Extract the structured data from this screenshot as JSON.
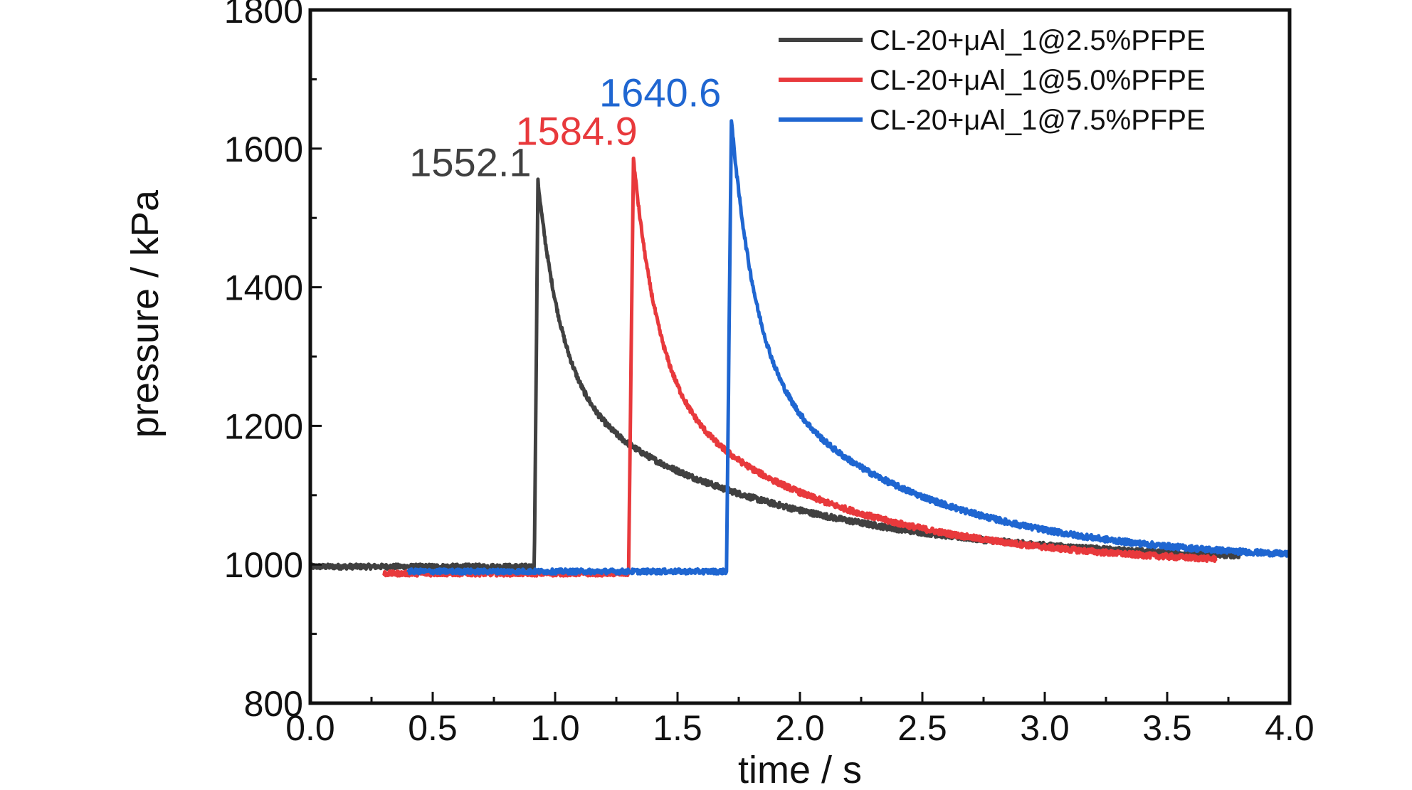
{
  "chart_data": {
    "type": "line",
    "title": "",
    "xlabel": "time / s",
    "ylabel": "pressure / kPa",
    "xlim": [
      0.0,
      4.0
    ],
    "ylim": [
      800,
      1800
    ],
    "xticks": [
      0.0,
      0.5,
      1.0,
      1.5,
      2.0,
      2.5,
      3.0,
      3.5,
      4.0
    ],
    "xtick_labels": [
      "0.0",
      "0.5",
      "1.0",
      "1.5",
      "2.0",
      "2.5",
      "3.0",
      "3.5",
      "4.0"
    ],
    "yticks": [
      800,
      1000,
      1200,
      1400,
      1600,
      1800
    ],
    "ytick_labels": [
      "800",
      "1000",
      "1200",
      "1400",
      "1600",
      "1800"
    ],
    "grid": false,
    "legend_position": "top-right",
    "series": [
      {
        "name": "CL-20+μAl_1@2.5%PFPE",
        "color": "#404040",
        "start": 0.0,
        "end": 3.8,
        "baseline": 997,
        "onset": 0.915,
        "peak_time": 0.93,
        "peak": 1552.1,
        "tail_end": 1003,
        "tau_fast": 0.1,
        "tau_slow": 0.9,
        "peak_label": "1552.1"
      },
      {
        "name": "CL-20+μAl_1@5.0%PFPE",
        "color": "#e8393c",
        "start": 0.3,
        "end": 3.7,
        "baseline": 987,
        "onset": 1.3,
        "peak_time": 1.32,
        "peak": 1584.9,
        "tail_end": 997,
        "tau_fast": 0.1,
        "tau_slow": 0.75,
        "peak_label": "1584.9"
      },
      {
        "name": "CL-20+μAl_1@7.5%PFPE",
        "color": "#1f66d1",
        "start": 0.4,
        "end": 4.0,
        "baseline": 990,
        "onset": 1.7,
        "peak_time": 1.72,
        "peak": 1640.6,
        "tail_end": 1004,
        "tau_fast": 0.1,
        "tau_slow": 0.7,
        "peak_label": "1640.6"
      }
    ]
  }
}
